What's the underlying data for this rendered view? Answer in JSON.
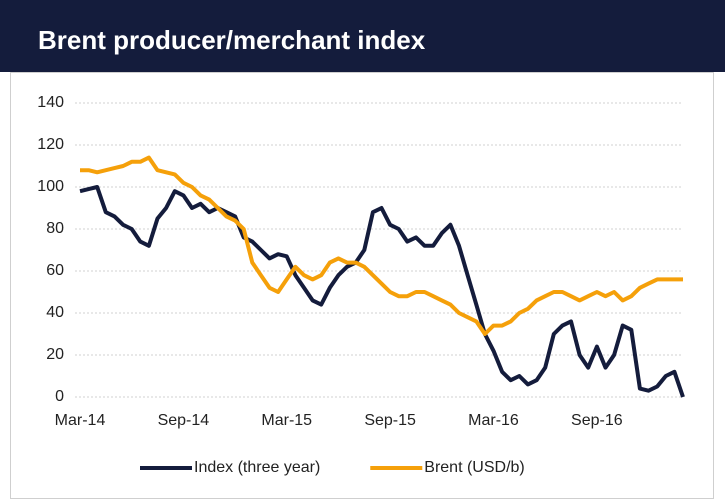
{
  "chart_data": {
    "type": "line",
    "title": "Brent producer/merchant index",
    "categories": [
      "Mar-14",
      null,
      null,
      null,
      null,
      null,
      null,
      null,
      null,
      null,
      null,
      null,
      "Sep-14",
      null,
      null,
      null,
      null,
      null,
      null,
      null,
      null,
      null,
      null,
      null,
      "Mar-15",
      null,
      null,
      null,
      null,
      null,
      null,
      null,
      null,
      null,
      null,
      null,
      "Sep-15",
      null,
      null,
      null,
      null,
      null,
      null,
      null,
      null,
      null,
      null,
      null,
      "Mar-16",
      null,
      null,
      null,
      null,
      null,
      null,
      null,
      null,
      null,
      null,
      null,
      "Sep-16",
      null,
      null,
      null,
      null,
      null,
      null,
      null,
      null,
      null,
      null
    ],
    "series": [
      {
        "name": "Index (three year)",
        "color": "#141c3c",
        "values": [
          98,
          99,
          100,
          88,
          86,
          82,
          80,
          74,
          72,
          85,
          90,
          98,
          96,
          90,
          92,
          88,
          90,
          88,
          86,
          76,
          74,
          70,
          66,
          68,
          67,
          58,
          52,
          46,
          44,
          52,
          58,
          62,
          64,
          70,
          88,
          90,
          82,
          80,
          74,
          76,
          72,
          72,
          78,
          82,
          72,
          58,
          44,
          30,
          22,
          12,
          8,
          10,
          6,
          8,
          14,
          30,
          34,
          36,
          20,
          14,
          24,
          14,
          20,
          34,
          32,
          4,
          3,
          5,
          10,
          12,
          0
        ]
      },
      {
        "name": "Brent (USD/b)",
        "color": "#f5a00a",
        "values": [
          108,
          108,
          107,
          108,
          109,
          110,
          112,
          112,
          114,
          108,
          107,
          106,
          102,
          100,
          96,
          94,
          90,
          86,
          84,
          80,
          64,
          58,
          52,
          50,
          56,
          62,
          58,
          56,
          58,
          64,
          66,
          64,
          64,
          62,
          58,
          54,
          50,
          48,
          48,
          50,
          50,
          48,
          46,
          44,
          40,
          38,
          36,
          30,
          34,
          34,
          36,
          40,
          42,
          46,
          48,
          50,
          50,
          48,
          46,
          48,
          50,
          48,
          50,
          46,
          48,
          52,
          54,
          56,
          56,
          56,
          56
        ]
      }
    ],
    "ylim": [
      0,
      140
    ],
    "yticks": [
      0,
      20,
      40,
      60,
      80,
      100,
      120,
      140
    ],
    "grid": true,
    "legend": "bottom"
  }
}
